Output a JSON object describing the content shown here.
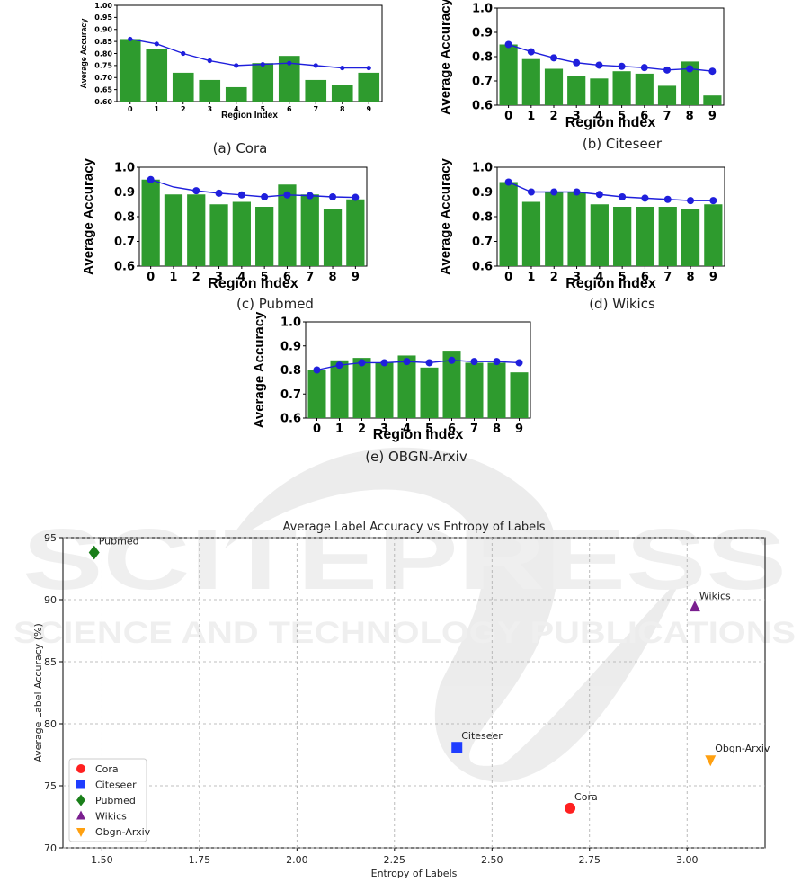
{
  "watermark": {
    "line1": "SCITEPRESS",
    "line2": "SCIENCE AND TECHNOLOGY PUBLICATIONS"
  },
  "colors": {
    "bar": "#2e9b2e",
    "line": "#1f1fdc",
    "cora": "#ff2020",
    "citeseer": "#1f3dff",
    "pubmed": "#1a7f1a",
    "wikics": "#7a1f8f",
    "arxiv": "#ffa010"
  },
  "chart_data": [
    {
      "type": "bar",
      "caption": "(a) Cora",
      "xlabel": "Region Index",
      "ylabel": "Average Accuracy",
      "categories": [
        "0",
        "1",
        "2",
        "3",
        "4",
        "5",
        "6",
        "7",
        "8",
        "9"
      ],
      "ylim": [
        0.6,
        1.0
      ],
      "yticks": [
        "0.60",
        "0.65",
        "0.70",
        "0.75",
        "0.80",
        "0.85",
        "0.90",
        "0.95",
        "1.00"
      ],
      "values": [
        0.86,
        0.82,
        0.72,
        0.69,
        0.66,
        0.76,
        0.79,
        0.69,
        0.67,
        0.72
      ],
      "trend": [
        0.86,
        0.84,
        0.8,
        0.77,
        0.75,
        0.755,
        0.76,
        0.75,
        0.74,
        0.74
      ],
      "trend_markers": [
        0,
        1,
        2,
        3,
        4,
        5,
        6,
        7,
        8,
        9
      ]
    },
    {
      "type": "bar",
      "caption": "(b) Citeseer",
      "xlabel": "Region Index",
      "ylabel": "Average Accuracy",
      "categories": [
        "0",
        "1",
        "2",
        "3",
        "4",
        "5",
        "6",
        "7",
        "8",
        "9"
      ],
      "ylim": [
        0.6,
        1.0
      ],
      "yticks": [
        "0.6",
        "0.7",
        "0.8",
        "0.9",
        "1.0"
      ],
      "values": [
        0.85,
        0.79,
        0.75,
        0.72,
        0.71,
        0.74,
        0.73,
        0.68,
        0.78,
        0.64
      ],
      "trend": [
        0.85,
        0.82,
        0.795,
        0.775,
        0.765,
        0.76,
        0.755,
        0.745,
        0.75,
        0.74
      ],
      "trend_markers": [
        0,
        1,
        2,
        3,
        4,
        5,
        6,
        7,
        8,
        9
      ]
    },
    {
      "type": "bar",
      "caption": "(c) Pubmed",
      "xlabel": "Region Index",
      "ylabel": "Average Accuracy",
      "categories": [
        "0",
        "1",
        "2",
        "3",
        "4",
        "5",
        "6",
        "7",
        "8",
        "9"
      ],
      "ylim": [
        0.6,
        1.0
      ],
      "yticks": [
        "0.6",
        "0.7",
        "0.8",
        "0.9",
        "1.0"
      ],
      "values": [
        0.95,
        0.89,
        0.89,
        0.85,
        0.86,
        0.84,
        0.93,
        0.89,
        0.83,
        0.87
      ],
      "trend": [
        0.95,
        0.92,
        0.905,
        0.895,
        0.888,
        0.88,
        0.888,
        0.885,
        0.88,
        0.878
      ],
      "trend_markers": [
        0,
        2,
        3,
        4,
        5,
        6,
        7,
        8,
        9
      ]
    },
    {
      "type": "bar",
      "caption": "(d) Wikics",
      "xlabel": "Region Index",
      "ylabel": "Average Accuracy",
      "categories": [
        "0",
        "1",
        "2",
        "3",
        "4",
        "5",
        "6",
        "7",
        "8",
        "9"
      ],
      "ylim": [
        0.6,
        1.0
      ],
      "yticks": [
        "0.6",
        "0.7",
        "0.8",
        "0.9",
        "1.0"
      ],
      "values": [
        0.94,
        0.86,
        0.9,
        0.9,
        0.85,
        0.84,
        0.84,
        0.84,
        0.83,
        0.85
      ],
      "trend": [
        0.94,
        0.9,
        0.9,
        0.9,
        0.89,
        0.88,
        0.875,
        0.87,
        0.865,
        0.865
      ],
      "trend_markers": [
        0,
        1,
        2,
        3,
        4,
        5,
        6,
        7,
        8,
        9
      ]
    },
    {
      "type": "bar",
      "caption": "(e)  OBGN-Arxiv",
      "xlabel": "Region Index",
      "ylabel": "Average Accuracy",
      "categories": [
        "0",
        "1",
        "2",
        "3",
        "4",
        "5",
        "6",
        "7",
        "8",
        "9"
      ],
      "ylim": [
        0.6,
        1.0
      ],
      "yticks": [
        "0.6",
        "0.7",
        "0.8",
        "0.9",
        "1.0"
      ],
      "values": [
        0.8,
        0.84,
        0.85,
        0.83,
        0.86,
        0.81,
        0.88,
        0.83,
        0.83,
        0.79
      ],
      "trend": [
        0.8,
        0.82,
        0.83,
        0.83,
        0.835,
        0.83,
        0.84,
        0.835,
        0.835,
        0.83
      ],
      "trend_markers": [
        0,
        1,
        2,
        3,
        4,
        5,
        6,
        7,
        8,
        9
      ]
    },
    {
      "type": "scatter",
      "title": "Average Label Accuracy vs Entropy of Labels",
      "xlabel": "Entropy of Labels",
      "ylabel": "Average Label Accuracy (%)",
      "xlim": [
        1.4,
        3.2
      ],
      "ylim": [
        70,
        95
      ],
      "xticks": [
        "1.50",
        "1.75",
        "2.00",
        "2.25",
        "2.50",
        "2.75",
        "3.00"
      ],
      "yticks": [
        "70",
        "75",
        "80",
        "85",
        "90",
        "95"
      ],
      "grid": true,
      "legend_position": "lower-left",
      "points": [
        {
          "name": "Cora",
          "x": 2.7,
          "y": 73.2,
          "marker": "circle",
          "color_key": "cora"
        },
        {
          "name": "Citeseer",
          "x": 2.41,
          "y": 78.1,
          "marker": "square",
          "color_key": "citeseer"
        },
        {
          "name": "Pubmed",
          "x": 1.48,
          "y": 93.8,
          "marker": "diamond",
          "color_key": "pubmed"
        },
        {
          "name": "Wikics",
          "x": 3.02,
          "y": 89.4,
          "marker": "triangle-up",
          "color_key": "wikics"
        },
        {
          "name": "Obgn-Arxiv",
          "x": 3.06,
          "y": 77.1,
          "marker": "triangle-down",
          "color_key": "arxiv"
        }
      ]
    }
  ]
}
